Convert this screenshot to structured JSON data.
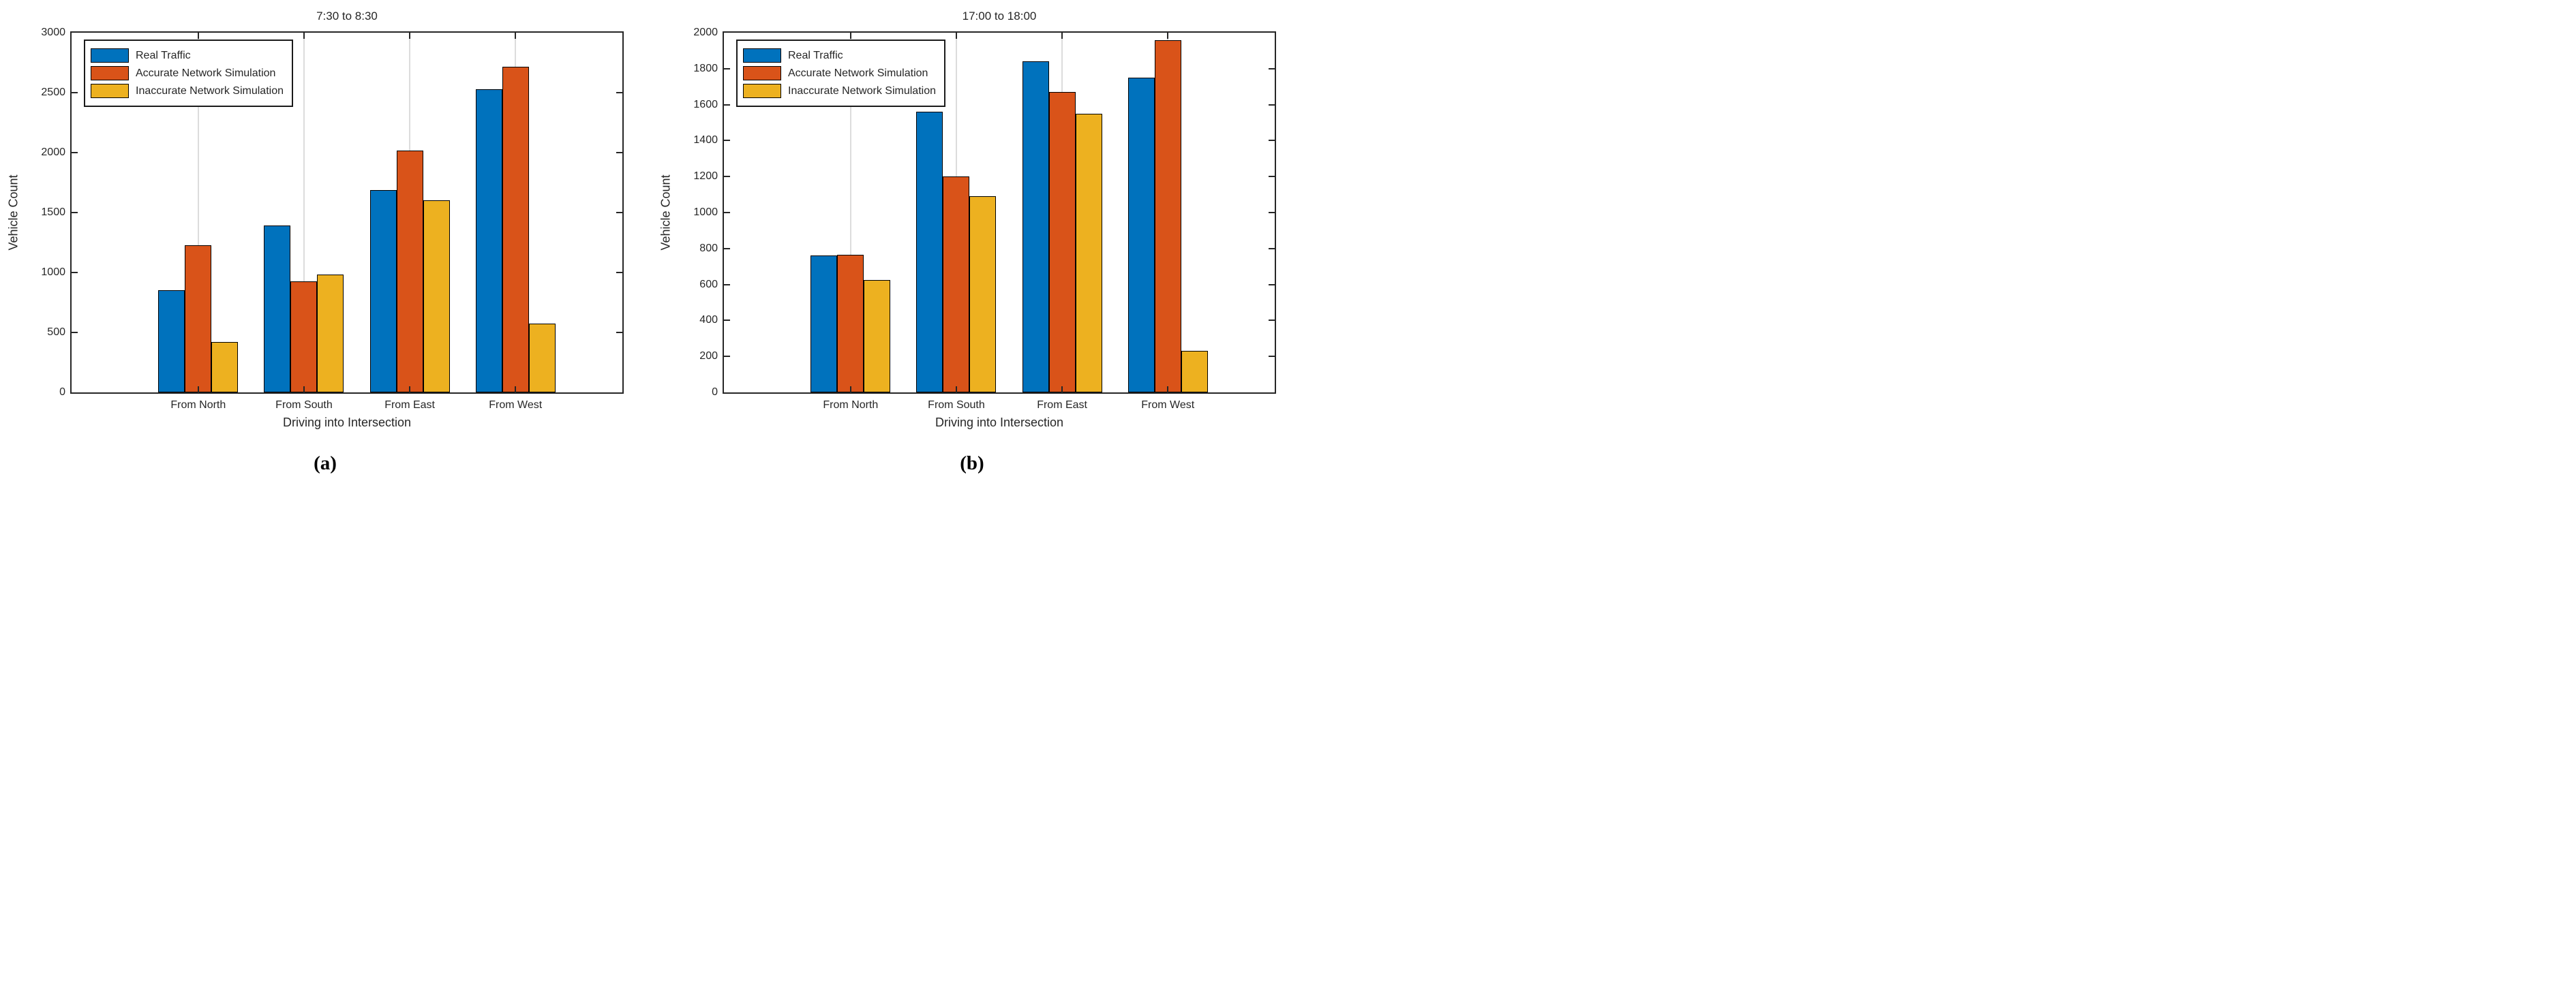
{
  "figure": {
    "panel_label_a": "(a)",
    "panel_label_b": "(b)"
  },
  "legend": {
    "position": "top-left",
    "items": [
      {
        "label": "Real Traffic",
        "color": "#0072BD"
      },
      {
        "label": "Accurate Network Simulation",
        "color": "#D95319"
      },
      {
        "label": "Inaccurate Network Simulation",
        "color": "#EDB120"
      }
    ]
  },
  "chart_data": [
    {
      "type": "bar",
      "title": "7:30 to 8:30",
      "xlabel": "Driving into Intersection",
      "ylabel": "Vehicle Count",
      "categories": [
        "From North",
        "From South",
        "From East",
        "From West"
      ],
      "series": [
        {
          "name": "Real Traffic",
          "color": "#0072BD",
          "values": [
            850,
            1390,
            1690,
            2530
          ]
        },
        {
          "name": "Accurate Network Simulation",
          "color": "#D95319",
          "values": [
            1230,
            925,
            2015,
            2715
          ]
        },
        {
          "name": "Inaccurate Network Simulation",
          "color": "#EDB120",
          "values": [
            420,
            985,
            1600,
            575
          ]
        }
      ],
      "ylim": [
        0,
        3000
      ],
      "ytick_step": 500,
      "yticks": [
        0,
        500,
        1000,
        1500,
        2000,
        2500,
        3000
      ],
      "grid": "vertical category gridlines",
      "legend_position": "top-left"
    },
    {
      "type": "bar",
      "title": "17:00 to 18:00",
      "xlabel": "Driving into Intersection",
      "ylabel": "Vehicle Count",
      "categories": [
        "From North",
        "From South",
        "From East",
        "From West"
      ],
      "series": [
        {
          "name": "Real Traffic",
          "color": "#0072BD",
          "values": [
            760,
            1560,
            1840,
            1750
          ]
        },
        {
          "name": "Accurate Network Simulation",
          "color": "#D95319",
          "values": [
            765,
            1200,
            1670,
            1960
          ]
        },
        {
          "name": "Inaccurate Network Simulation",
          "color": "#EDB120",
          "values": [
            625,
            1090,
            1550,
            230
          ]
        }
      ],
      "ylim": [
        0,
        2000
      ],
      "ytick_step": 200,
      "yticks": [
        0,
        200,
        400,
        600,
        800,
        1000,
        1200,
        1400,
        1600,
        1800,
        2000
      ],
      "grid": "vertical category gridlines",
      "legend_position": "top-left"
    }
  ]
}
